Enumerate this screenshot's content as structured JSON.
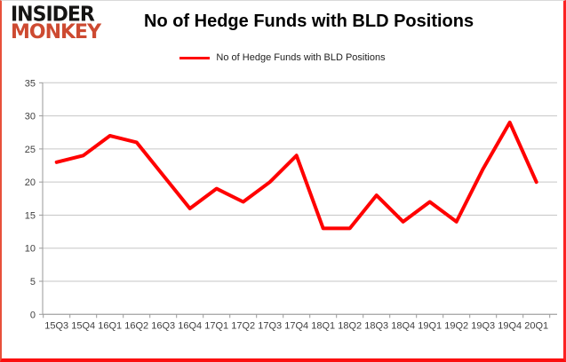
{
  "logo": {
    "line1": "INSIDER",
    "line2": "MONKEY"
  },
  "header": {
    "title": "No of Hedge Funds with BLD Positions"
  },
  "legend": {
    "label": "No of Hedge Funds with BLD Positions",
    "color": "#ff0000"
  },
  "colors": {
    "series": "#ff0000",
    "gridline": "#c6c6c6",
    "axis": "#9a9a9a",
    "tick_label": "#3f3f3f",
    "frame_red": "#fb0f0f",
    "logo_red": "#cd4a31",
    "logo_black": "#151413"
  },
  "chart_data": {
    "type": "line",
    "title": "No of Hedge Funds with BLD Positions",
    "categories": [
      "15Q3",
      "15Q4",
      "16Q1",
      "16Q2",
      "16Q3",
      "16Q4",
      "17Q1",
      "17Q2",
      "17Q3",
      "17Q4",
      "18Q1",
      "18Q2",
      "18Q3",
      "18Q4",
      "19Q1",
      "19Q2",
      "19Q3",
      "19Q4",
      "20Q1"
    ],
    "series": [
      {
        "name": "No of Hedge Funds with BLD Positions",
        "color": "#ff0000",
        "values": [
          23,
          24,
          27,
          26,
          21,
          16,
          19,
          17,
          20,
          24,
          13,
          13,
          18,
          14,
          17,
          14,
          22,
          29,
          20
        ]
      }
    ],
    "xlabel": "",
    "ylabel": "",
    "ylim": [
      0,
      35
    ],
    "yticks": [
      0,
      5,
      10,
      15,
      20,
      25,
      30,
      35
    ],
    "grid": true,
    "legend_position": "top-center"
  }
}
